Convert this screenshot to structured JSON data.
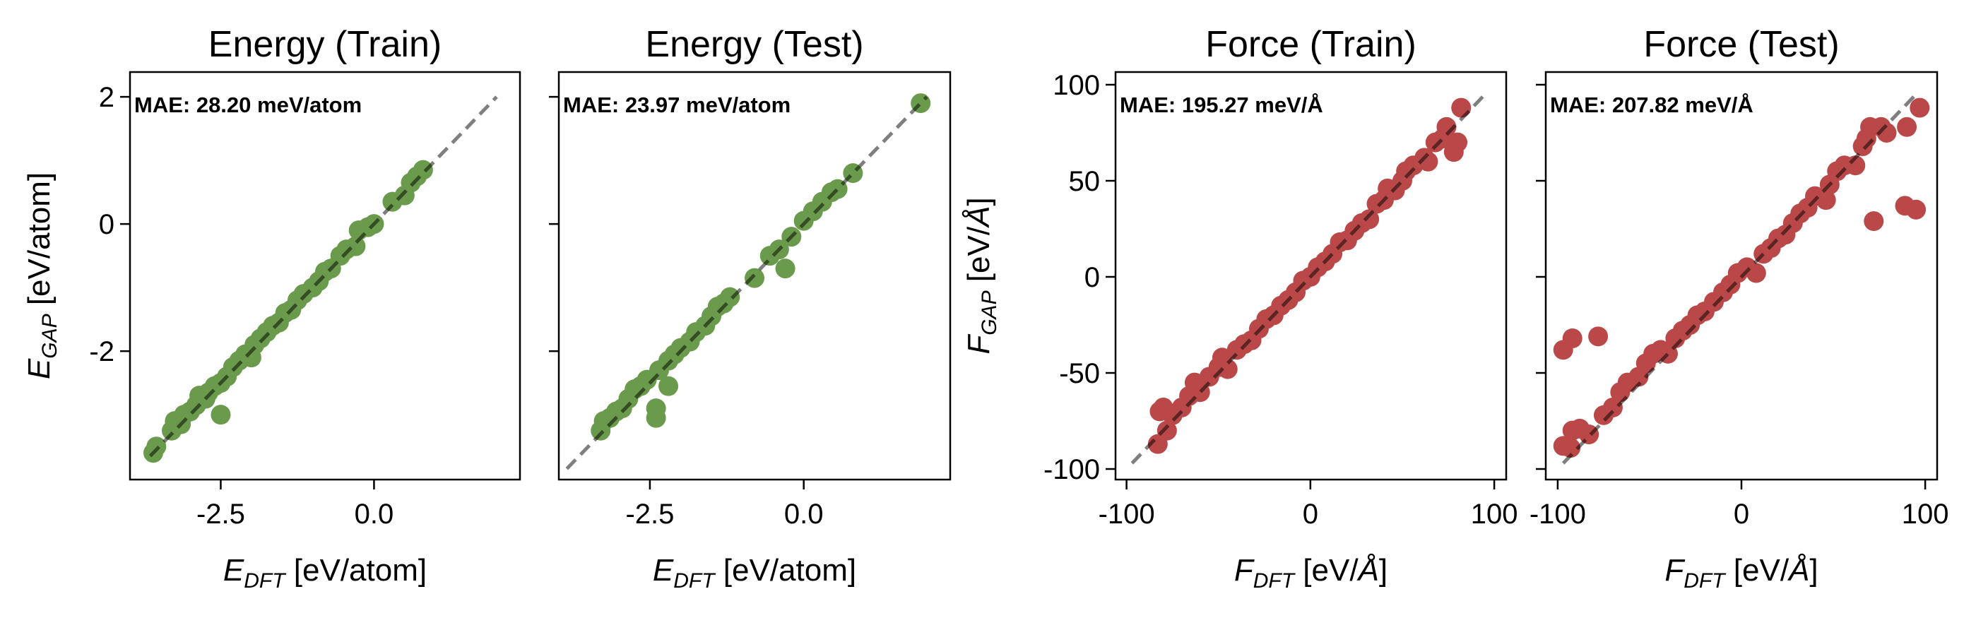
{
  "chart_data": [
    {
      "type": "scatter",
      "title": "Energy (Train)",
      "annotation": "MAE: 28.20 meV/atom",
      "xlabel": "E_DFT [eV/atom]",
      "ylabel": "E_GAP [eV/atom]",
      "xlim": [
        -3.98,
        2.38
      ],
      "ylim": [
        -4.02,
        2.39
      ],
      "xticks": [
        {
          "v": -2.5,
          "label": "-2.5"
        },
        {
          "v": 0.0,
          "label": "0.0"
        }
      ],
      "yticks": [
        {
          "v": 2,
          "label": "2"
        },
        {
          "v": 0,
          "label": "0"
        },
        {
          "v": -2,
          "label": "-2"
        }
      ],
      "show_yticklabels": true,
      "color": "#6a9a4b",
      "reference_line": [
        -3.65,
        2.0
      ],
      "points": [
        [
          -3.6,
          -3.6
        ],
        [
          -3.55,
          -3.5
        ],
        [
          -3.3,
          -3.25
        ],
        [
          -3.25,
          -3.1
        ],
        [
          -3.15,
          -3.15
        ],
        [
          -3.1,
          -3.0
        ],
        [
          -3.0,
          -2.95
        ],
        [
          -2.9,
          -2.85
        ],
        [
          -2.85,
          -2.7
        ],
        [
          -2.75,
          -2.75
        ],
        [
          -2.7,
          -2.65
        ],
        [
          -2.6,
          -2.55
        ],
        [
          -2.5,
          -3.0
        ],
        [
          -2.5,
          -2.5
        ],
        [
          -2.4,
          -2.4
        ],
        [
          -2.3,
          -2.25
        ],
        [
          -2.2,
          -2.15
        ],
        [
          -2.1,
          -2.05
        ],
        [
          -2.0,
          -2.1
        ],
        [
          -1.95,
          -1.9
        ],
        [
          -1.85,
          -1.8
        ],
        [
          -1.75,
          -1.7
        ],
        [
          -1.65,
          -1.6
        ],
        [
          -1.55,
          -1.55
        ],
        [
          -1.45,
          -1.4
        ],
        [
          -1.35,
          -1.35
        ],
        [
          -1.25,
          -1.2
        ],
        [
          -1.15,
          -1.1
        ],
        [
          -1.0,
          -1.0
        ],
        [
          -0.9,
          -0.9
        ],
        [
          -0.8,
          -0.75
        ],
        [
          -0.7,
          -0.7
        ],
        [
          -0.55,
          -0.5
        ],
        [
          -0.45,
          -0.4
        ],
        [
          -0.3,
          -0.35
        ],
        [
          -0.25,
          -0.1
        ],
        [
          -0.1,
          -0.05
        ],
        [
          0.0,
          0.0
        ],
        [
          0.3,
          0.35
        ],
        [
          0.5,
          0.45
        ],
        [
          0.6,
          0.65
        ],
        [
          0.7,
          0.75
        ],
        [
          0.8,
          0.85
        ]
      ]
    },
    {
      "type": "scatter",
      "title": "Energy (Test)",
      "annotation": "MAE: 23.97 meV/atom",
      "xlabel": "E_DFT [eV/atom]",
      "ylabel": "",
      "xlim": [
        -3.98,
        2.38
      ],
      "ylim": [
        -4.02,
        2.39
      ],
      "xticks": [
        {
          "v": -2.5,
          "label": "-2.5"
        },
        {
          "v": 0.0,
          "label": "0.0"
        }
      ],
      "yticks": [
        {
          "v": 2,
          "label": ""
        },
        {
          "v": 0,
          "label": ""
        },
        {
          "v": -2,
          "label": ""
        }
      ],
      "show_yticklabels": false,
      "color": "#6a9a4b",
      "reference_line": [
        -3.85,
        2.0
      ],
      "points": [
        [
          -3.3,
          -3.25
        ],
        [
          -3.25,
          -3.1
        ],
        [
          -3.15,
          -3.05
        ],
        [
          -3.05,
          -2.95
        ],
        [
          -2.95,
          -2.9
        ],
        [
          -2.85,
          -2.75
        ],
        [
          -2.75,
          -2.6
        ],
        [
          -2.65,
          -2.55
        ],
        [
          -2.55,
          -2.45
        ],
        [
          -2.4,
          -2.9
        ],
        [
          -2.4,
          -3.05
        ],
        [
          -2.35,
          -2.3
        ],
        [
          -2.2,
          -2.55
        ],
        [
          -2.2,
          -2.15
        ],
        [
          -2.1,
          -2.05
        ],
        [
          -2.0,
          -1.95
        ],
        [
          -1.85,
          -1.85
        ],
        [
          -1.75,
          -1.7
        ],
        [
          -1.6,
          -1.6
        ],
        [
          -1.5,
          -1.45
        ],
        [
          -1.4,
          -1.3
        ],
        [
          -1.3,
          -1.25
        ],
        [
          -1.2,
          -1.15
        ],
        [
          -0.8,
          -0.85
        ],
        [
          -0.55,
          -0.5
        ],
        [
          -0.3,
          -0.7
        ],
        [
          -0.4,
          -0.4
        ],
        [
          -0.2,
          -0.2
        ],
        [
          0.0,
          0.05
        ],
        [
          0.15,
          0.2
        ],
        [
          0.3,
          0.35
        ],
        [
          0.45,
          0.5
        ],
        [
          0.55,
          0.55
        ],
        [
          0.8,
          0.8
        ],
        [
          1.9,
          1.9
        ]
      ]
    },
    {
      "type": "scatter",
      "title": "Force (Train)",
      "annotation": "MAE: 195.27 meV/Å",
      "xlabel": "F_DFT [eV/Å]",
      "ylabel": "F_GAP [eV/Å]",
      "xlim": [
        -106,
        106.5
      ],
      "ylim": [
        -105.5,
        106.6
      ],
      "xticks": [
        {
          "v": -100,
          "label": "-100"
        },
        {
          "v": 0,
          "label": "0"
        },
        {
          "v": 100,
          "label": "100"
        }
      ],
      "yticks": [
        {
          "v": 100,
          "label": "100"
        },
        {
          "v": 50,
          "label": "50"
        },
        {
          "v": 0,
          "label": "0"
        },
        {
          "v": -50,
          "label": "-50"
        },
        {
          "v": -100,
          "label": "-100"
        }
      ],
      "show_yticklabels": true,
      "color": "#bb4848",
      "reference_line": [
        -97,
        95
      ],
      "points": [
        [
          -83,
          -87
        ],
        [
          -82,
          -70
        ],
        [
          -80,
          -68
        ],
        [
          -78,
          -80
        ],
        [
          -75,
          -72
        ],
        [
          -70,
          -68
        ],
        [
          -66,
          -62
        ],
        [
          -63,
          -55
        ],
        [
          -60,
          -60
        ],
        [
          -55,
          -52
        ],
        [
          -50,
          -47
        ],
        [
          -48,
          -42
        ],
        [
          -45,
          -48
        ],
        [
          -40,
          -38
        ],
        [
          -36,
          -35
        ],
        [
          -32,
          -33
        ],
        [
          -28,
          -27
        ],
        [
          -24,
          -22
        ],
        [
          -20,
          -20
        ],
        [
          -16,
          -15
        ],
        [
          -12,
          -12
        ],
        [
          -8,
          -8
        ],
        [
          -4,
          -2
        ],
        [
          0,
          0
        ],
        [
          4,
          5
        ],
        [
          8,
          8
        ],
        [
          12,
          12
        ],
        [
          16,
          18
        ],
        [
          20,
          19
        ],
        [
          24,
          24
        ],
        [
          28,
          28
        ],
        [
          32,
          30
        ],
        [
          36,
          38
        ],
        [
          40,
          40
        ],
        [
          42,
          46
        ],
        [
          46,
          45
        ],
        [
          50,
          50
        ],
        [
          52,
          55
        ],
        [
          56,
          58
        ],
        [
          62,
          62
        ],
        [
          64,
          60
        ],
        [
          68,
          70
        ],
        [
          72,
          72
        ],
        [
          74,
          78
        ],
        [
          78,
          65
        ],
        [
          80,
          70
        ],
        [
          82,
          88
        ]
      ]
    },
    {
      "type": "scatter",
      "title": "Force (Test)",
      "annotation": "MAE: 207.82 meV/Å",
      "xlabel": "F_DFT [eV/Å]",
      "ylabel": "",
      "xlim": [
        -106.5,
        106.5
      ],
      "ylim": [
        -105.5,
        106.6
      ],
      "xticks": [
        {
          "v": -100,
          "label": "-100"
        },
        {
          "v": 0,
          "label": "0"
        },
        {
          "v": 100,
          "label": "100"
        }
      ],
      "yticks": [
        {
          "v": 100,
          "label": ""
        },
        {
          "v": 50,
          "label": ""
        },
        {
          "v": 0,
          "label": ""
        },
        {
          "v": -50,
          "label": ""
        },
        {
          "v": -100,
          "label": ""
        }
      ],
      "show_yticklabels": false,
      "color": "#bb4848",
      "reference_line": [
        -97,
        95
      ],
      "points": [
        [
          -97,
          -88
        ],
        [
          -93,
          -89
        ],
        [
          -92,
          -80
        ],
        [
          -88,
          -79
        ],
        [
          -83,
          -82
        ],
        [
          -97,
          -38
        ],
        [
          -92,
          -32
        ],
        [
          -78,
          -31
        ],
        [
          -75,
          -72
        ],
        [
          -70,
          -68
        ],
        [
          -66,
          -60
        ],
        [
          -62,
          -55
        ],
        [
          -56,
          -52
        ],
        [
          -52,
          -45
        ],
        [
          -48,
          -40
        ],
        [
          -44,
          -38
        ],
        [
          -40,
          -40
        ],
        [
          -36,
          -32
        ],
        [
          -32,
          -28
        ],
        [
          -28,
          -25
        ],
        [
          -24,
          -20
        ],
        [
          -20,
          -18
        ],
        [
          -15,
          -13
        ],
        [
          -10,
          -8
        ],
        [
          -6,
          -4
        ],
        [
          -2,
          2
        ],
        [
          3,
          5
        ],
        [
          8,
          2
        ],
        [
          12,
          12
        ],
        [
          16,
          15
        ],
        [
          20,
          20
        ],
        [
          24,
          22
        ],
        [
          28,
          28
        ],
        [
          32,
          33
        ],
        [
          36,
          36
        ],
        [
          40,
          42
        ],
        [
          46,
          40
        ],
        [
          48,
          48
        ],
        [
          52,
          55
        ],
        [
          56,
          58
        ],
        [
          62,
          58
        ],
        [
          66,
          68
        ],
        [
          68,
          72
        ],
        [
          70,
          78
        ],
        [
          72,
          29
        ],
        [
          76,
          78
        ],
        [
          79,
          75
        ],
        [
          89,
          37
        ],
        [
          90,
          78
        ],
        [
          95,
          35
        ],
        [
          97,
          88
        ]
      ]
    }
  ]
}
